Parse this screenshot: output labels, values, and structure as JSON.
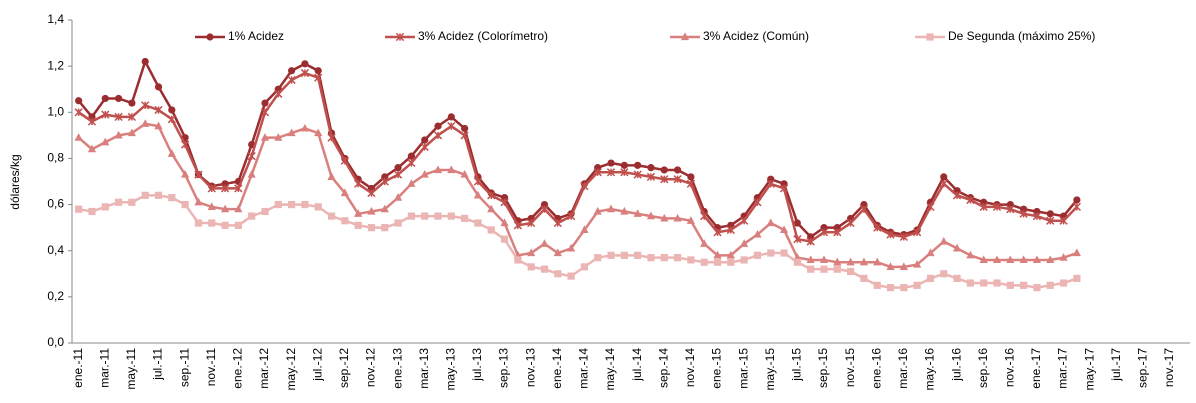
{
  "chart_data": {
    "type": "line",
    "y_label": "dólares/kg",
    "categories": [
      "ene.-11",
      null,
      "mar.-11",
      null,
      "may.-11",
      null,
      "jul.-11",
      null,
      "sep.-11",
      null,
      "nov.-11",
      null,
      "ene.-12",
      null,
      "mar.-12",
      null,
      "may.-12",
      null,
      "jul.-12",
      null,
      "sep.-12",
      null,
      "nov.-12",
      null,
      "ene.-13",
      null,
      "mar.-13",
      null,
      "may.-13",
      null,
      "jul.-13",
      null,
      "sep.-13",
      null,
      "nov.-13",
      null,
      "ene.-14",
      null,
      "mar.-14",
      null,
      "may.-14",
      null,
      "jul.-14",
      null,
      "sep.-14",
      null,
      "nov.-14",
      null,
      "ene.-15",
      null,
      "mar.-15",
      null,
      "may.-15",
      null,
      "jul.-15",
      null,
      "sep.-15",
      null,
      "nov.-15",
      null,
      "ene.-16",
      null,
      "mar.-16",
      null,
      "may.-16",
      null,
      "jul.-16",
      null,
      "sep.-16",
      null,
      "nov.-16",
      null,
      "ene.-17",
      null,
      "mar.-17",
      null,
      "may.-17",
      null,
      "jul.-17",
      null,
      "sep.-17",
      null,
      "nov.-17",
      null
    ],
    "series": [
      {
        "name": "1% Acidez",
        "color": "#9b2d30",
        "marker": "circle",
        "values": [
          1.05,
          0.98,
          1.06,
          1.06,
          1.04,
          1.22,
          1.11,
          1.01,
          0.89,
          0.73,
          0.68,
          0.69,
          0.7,
          0.86,
          1.04,
          1.1,
          1.18,
          1.21,
          1.18,
          0.91,
          0.8,
          0.71,
          0.67,
          0.72,
          0.76,
          0.81,
          0.88,
          0.94,
          0.98,
          0.93,
          0.72,
          0.65,
          0.63,
          0.53,
          0.54,
          0.6,
          0.54,
          0.56,
          0.69,
          0.76,
          0.78,
          0.77,
          0.77,
          0.76,
          0.75,
          0.75,
          0.72,
          0.57,
          0.5,
          0.51,
          0.55,
          0.63,
          0.71,
          0.69,
          0.52,
          0.46,
          0.5,
          0.5,
          0.54,
          0.6,
          0.51,
          0.48,
          0.47,
          0.49,
          0.61,
          0.72,
          0.66,
          0.63,
          0.61,
          0.6,
          0.6,
          0.58,
          0.57,
          0.56,
          0.55,
          0.62,
          null,
          null,
          null,
          null,
          null,
          null,
          null,
          null
        ]
      },
      {
        "name": "3% Acidez (Colorímetro)",
        "color": "#c0504d",
        "marker": "star",
        "values": [
          1.0,
          0.96,
          0.99,
          0.98,
          0.98,
          1.03,
          1.01,
          0.97,
          0.86,
          0.73,
          0.67,
          0.67,
          0.67,
          0.81,
          1.0,
          1.08,
          1.14,
          1.17,
          1.15,
          0.89,
          0.79,
          0.69,
          0.65,
          0.7,
          0.73,
          0.78,
          0.85,
          0.9,
          0.94,
          0.9,
          0.7,
          0.64,
          0.61,
          0.51,
          0.52,
          0.58,
          0.52,
          0.55,
          0.68,
          0.74,
          0.74,
          0.74,
          0.73,
          0.72,
          0.71,
          0.71,
          0.69,
          0.55,
          0.48,
          0.49,
          0.53,
          0.61,
          0.69,
          0.67,
          0.45,
          0.44,
          0.48,
          0.48,
          0.52,
          0.58,
          0.5,
          0.47,
          0.46,
          0.48,
          0.59,
          0.69,
          0.64,
          0.62,
          0.59,
          0.59,
          0.58,
          0.56,
          0.55,
          0.53,
          0.53,
          0.59,
          null,
          null,
          null,
          null,
          null,
          null,
          null,
          null
        ]
      },
      {
        "name": "3% Acidez (Común)",
        "color": "#d9807e",
        "marker": "triangle",
        "values": [
          0.89,
          0.84,
          0.87,
          0.9,
          0.91,
          0.95,
          0.94,
          0.82,
          0.73,
          0.61,
          0.59,
          0.58,
          0.58,
          0.73,
          0.89,
          0.89,
          0.91,
          0.93,
          0.91,
          0.72,
          0.65,
          0.56,
          0.57,
          0.58,
          0.63,
          0.69,
          0.73,
          0.75,
          0.75,
          0.73,
          0.64,
          0.58,
          0.52,
          0.38,
          0.39,
          0.43,
          0.39,
          0.41,
          0.49,
          0.57,
          0.58,
          0.57,
          0.56,
          0.55,
          0.54,
          0.54,
          0.53,
          0.43,
          0.38,
          0.38,
          0.43,
          0.47,
          0.52,
          0.49,
          0.37,
          0.36,
          0.36,
          0.35,
          0.35,
          0.35,
          0.35,
          0.33,
          0.33,
          0.34,
          0.39,
          0.44,
          0.41,
          0.38,
          0.36,
          0.36,
          0.36,
          0.36,
          0.36,
          0.36,
          0.37,
          0.39,
          null,
          null,
          null,
          null,
          null,
          null,
          null,
          null
        ]
      },
      {
        "name": "De Segunda (máximo 25%)",
        "color": "#ebb5b4",
        "marker": "square",
        "values": [
          0.58,
          0.57,
          0.59,
          0.61,
          0.61,
          0.64,
          0.64,
          0.63,
          0.6,
          0.52,
          0.52,
          0.51,
          0.51,
          0.55,
          0.57,
          0.6,
          0.6,
          0.6,
          0.59,
          0.55,
          0.53,
          0.51,
          0.5,
          0.5,
          0.52,
          0.55,
          0.55,
          0.55,
          0.55,
          0.54,
          0.52,
          0.49,
          0.45,
          0.36,
          0.33,
          0.32,
          0.3,
          0.29,
          0.33,
          0.37,
          0.38,
          0.38,
          0.38,
          0.37,
          0.37,
          0.37,
          0.36,
          0.35,
          0.35,
          0.35,
          0.36,
          0.38,
          0.39,
          0.39,
          0.35,
          0.32,
          0.32,
          0.32,
          0.31,
          0.28,
          0.25,
          0.24,
          0.24,
          0.25,
          0.28,
          0.3,
          0.28,
          0.26,
          0.26,
          0.26,
          0.25,
          0.25,
          0.24,
          0.25,
          0.26,
          0.28,
          null,
          null,
          null,
          null,
          null,
          null,
          null,
          null
        ]
      }
    ],
    "ylim": [
      0,
      1.4
    ],
    "yticks": [
      {
        "value": 0,
        "label": "0,0"
      },
      {
        "value": 0.2,
        "label": "0,2"
      },
      {
        "value": 0.4,
        "label": "0,4"
      },
      {
        "value": 0.6,
        "label": "0,6"
      },
      {
        "value": 0.8,
        "label": "0,8"
      },
      {
        "value": 1.0,
        "label": "1,0"
      },
      {
        "value": 1.2,
        "label": "1,2"
      },
      {
        "value": 1.4,
        "label": "1,4"
      }
    ],
    "grid": false,
    "legend": "top"
  }
}
